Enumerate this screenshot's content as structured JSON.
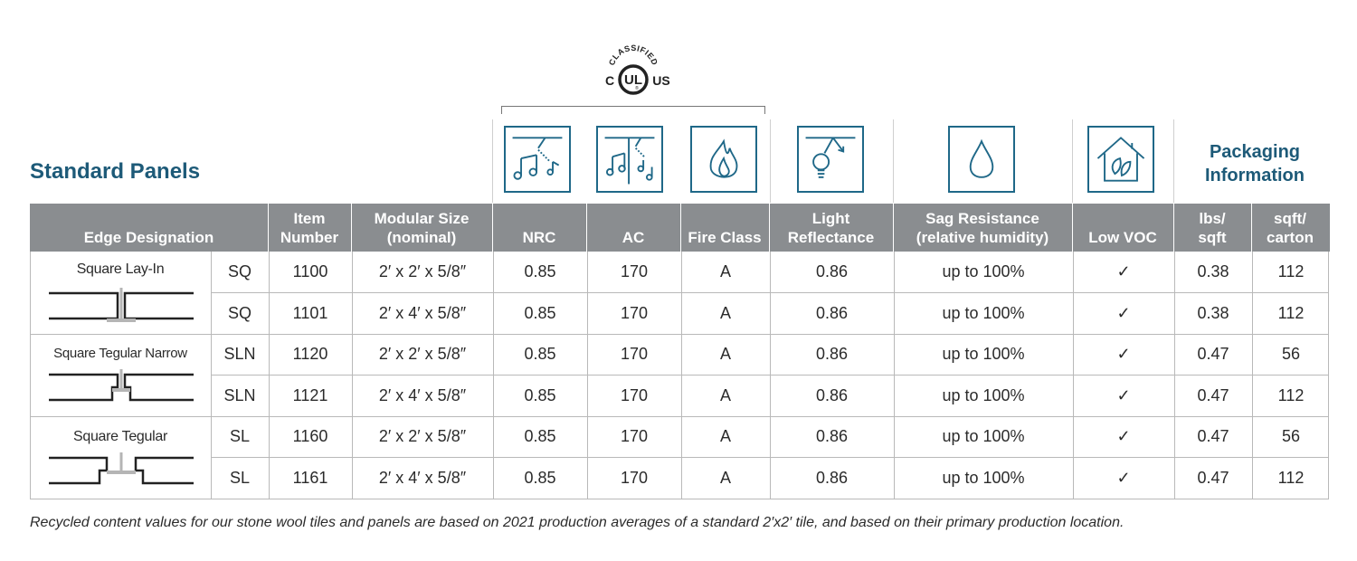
{
  "title": "Standard Panels",
  "certification": {
    "top_text": "CLASSIFIED",
    "left_letter": "C",
    "center_letters": "UL",
    "right_letters": "US",
    "registered": "®"
  },
  "icons": [
    "nrc-icon",
    "ac-icon",
    "fire-icon",
    "light-reflectance-icon",
    "humidity-drop-icon",
    "low-voc-house-icon"
  ],
  "packaging_title": "Packaging\nInformation",
  "columns": [
    {
      "key": "edge",
      "label": "Edge Designation"
    },
    {
      "key": "item",
      "label": "Item\nNumber"
    },
    {
      "key": "size",
      "label": "Modular Size\n(nominal)"
    },
    {
      "key": "nrc",
      "label": "NRC"
    },
    {
      "key": "ac",
      "label": "AC"
    },
    {
      "key": "fire",
      "label": "Fire Class"
    },
    {
      "key": "lr",
      "label": "Light\nReflectance"
    },
    {
      "key": "sag",
      "label": "Sag Resistance\n(relative humidity)"
    },
    {
      "key": "voc",
      "label": "Low VOC"
    },
    {
      "key": "lbs",
      "label": "lbs/\nsqft"
    },
    {
      "key": "sqft",
      "label": "sqft/\ncarton"
    }
  ],
  "groups": [
    {
      "label": "Square Lay-In",
      "profile": "lay-in"
    },
    {
      "label": "Square Tegular Narrow",
      "profile": "tegular-narrow"
    },
    {
      "label": "Square Tegular",
      "profile": "tegular"
    }
  ],
  "rows": [
    {
      "code": "SQ",
      "item": "1100",
      "size": "2′ x 2′ x 5/8″",
      "nrc": "0.85",
      "ac": "170",
      "fire": "A",
      "lr": "0.86",
      "sag": "up to 100%",
      "voc": "✓",
      "lbs": "0.38",
      "sqft": "112"
    },
    {
      "code": "SQ",
      "item": "1101",
      "size": "2′ x 4′ x 5/8″",
      "nrc": "0.85",
      "ac": "170",
      "fire": "A",
      "lr": "0.86",
      "sag": "up to 100%",
      "voc": "✓",
      "lbs": "0.38",
      "sqft": "112"
    },
    {
      "code": "SLN",
      "item": "1120",
      "size": "2′ x 2′ x 5/8″",
      "nrc": "0.85",
      "ac": "170",
      "fire": "A",
      "lr": "0.86",
      "sag": "up to 100%",
      "voc": "✓",
      "lbs": "0.47",
      "sqft": "56"
    },
    {
      "code": "SLN",
      "item": "1121",
      "size": "2′ x 4′ x 5/8″",
      "nrc": "0.85",
      "ac": "170",
      "fire": "A",
      "lr": "0.86",
      "sag": "up to 100%",
      "voc": "✓",
      "lbs": "0.47",
      "sqft": "112"
    },
    {
      "code": "SL",
      "item": "1160",
      "size": "2′ x 2′ x 5/8″",
      "nrc": "0.85",
      "ac": "170",
      "fire": "A",
      "lr": "0.86",
      "sag": "up to 100%",
      "voc": "✓",
      "lbs": "0.47",
      "sqft": "56"
    },
    {
      "code": "SL",
      "item": "1161",
      "size": "2′ x 4′ x 5/8″",
      "nrc": "0.85",
      "ac": "170",
      "fire": "A",
      "lr": "0.86",
      "sag": "up to 100%",
      "voc": "✓",
      "lbs": "0.47",
      "sqft": "112"
    }
  ],
  "footnote": "Recycled content values for our stone wool tiles and panels are based on 2021 production averages of a standard 2′x2′ tile, and based on their primary production location.",
  "colors": {
    "accent": "#1d5a78",
    "icon": "#1f6888",
    "header_bg": "#8a8d90",
    "grid": "#b9b9b9"
  }
}
